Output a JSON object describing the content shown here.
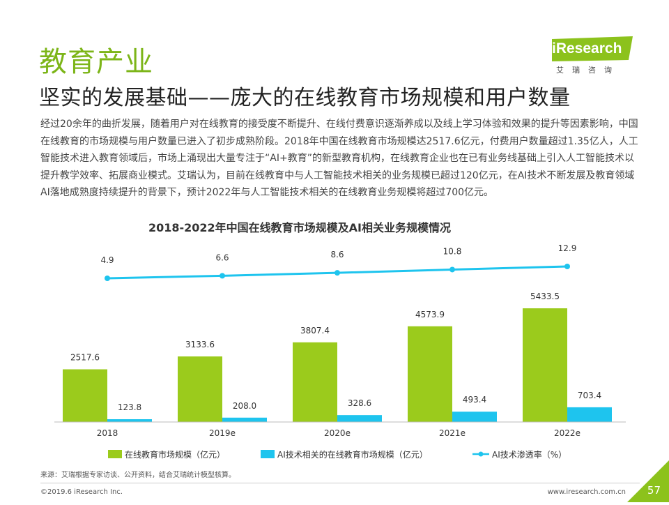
{
  "header": {
    "section": "教育产业",
    "title": "坚实的发展基础——庞大的在线教育市场规模和用户数量"
  },
  "logo": {
    "text": "iResearch",
    "sub": "艾瑞咨询"
  },
  "body_text": "经过20余年的曲折发展，随着用户对在线教育的接受度不断提升、在线付费意识逐渐养成以及线上学习体验和效果的提升等因素影响，中国在线教育的市场规模与用户数量已进入了初步成熟阶段。2018年中国在线教育市场规模达2517.6亿元，付费用户数量超过1.35亿人，人工智能技术进入教育领域后，市场上涌现出大量专注于“AI+教育”的新型教育机构，在线教育企业也在已有业务线基础上引入人工智能技术以提升教学效率、拓展商业模式。艾瑞认为，目前在线教育中与人工智能技术相关的业务规模已超过120亿元，在AI技术不断发展及教育领域AI落地成熟度持续提升的背景下，预计2022年与人工智能技术相关的在线教育业务规模将超过700亿元。",
  "chart_data": {
    "type": "bar",
    "title": "2018-2022年中国在线教育市场规模及AI相关业务规模情况",
    "categories": [
      "2018",
      "2019e",
      "2020e",
      "2021e",
      "2022e"
    ],
    "series": [
      {
        "name": "在线教育市场规模（亿元）",
        "type": "bar",
        "color": "#9bcb1c",
        "values": [
          2517.6,
          3133.6,
          3807.4,
          4573.9,
          5433.5
        ]
      },
      {
        "name": "AI技术相关的在线教育市场规模（亿元）",
        "type": "bar",
        "color": "#1ec4ee",
        "values": [
          123.8,
          208.0,
          328.6,
          493.4,
          703.4
        ]
      },
      {
        "name": "AI技术渗透率（%）",
        "type": "line",
        "color": "#1ec4ee",
        "values": [
          4.9,
          6.6,
          8.6,
          10.8,
          12.9
        ]
      }
    ],
    "value_labels": {
      "market": [
        "2517.6",
        "3133.6",
        "3807.4",
        "4573.9",
        "5433.5"
      ],
      "ai": [
        "123.8",
        "208.0",
        "328.6",
        "493.4",
        "703.4"
      ],
      "rate": [
        "4.9",
        "6.6",
        "8.6",
        "10.8",
        "12.9"
      ]
    },
    "legend_position": "bottom",
    "grid": false
  },
  "footer": {
    "source": "来源：艾瑞根据专家访谈、公开资料，结合艾瑞统计模型核算。",
    "copyright": "©2019.6 iResearch Inc.",
    "website": "www.iresearch.com.cn",
    "page": "57"
  },
  "colors": {
    "accent": "#7cb518",
    "bar_market": "#9bcb1c",
    "bar_ai": "#1ec4ee"
  }
}
